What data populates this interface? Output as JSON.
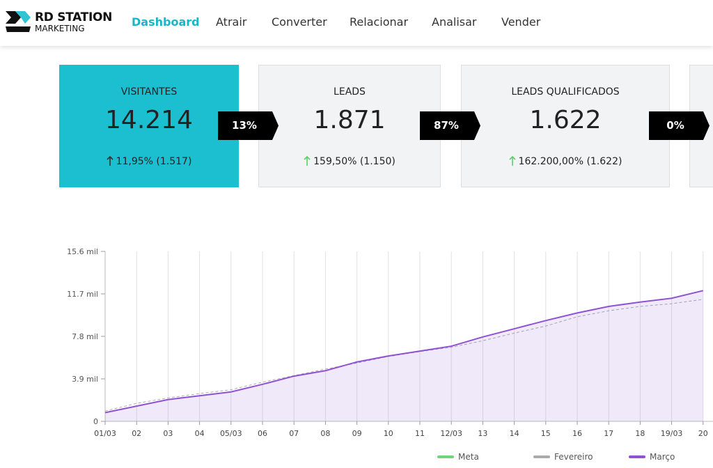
{
  "header": {
    "logo": {
      "line1": "RD STATION",
      "line2": "MARKETING"
    },
    "nav": [
      "Dashboard",
      "Atrair",
      "Converter",
      "Relacionar",
      "Analisar",
      "Vender"
    ]
  },
  "cards": [
    {
      "title": "VISITANTES",
      "value": "14.214",
      "change": "11,95% (1.517)"
    },
    {
      "title": "LEADS",
      "value": "1.871",
      "change": "159,50% (1.150)"
    },
    {
      "title": "LEADS QUALIFICADOS",
      "value": "1.622",
      "change": "162.200,00% (1.622)"
    }
  ],
  "conversions": [
    "13%",
    "87%",
    "0%"
  ],
  "chart_data": {
    "type": "line",
    "categories": [
      "01/03",
      "02",
      "03",
      "04",
      "05/03",
      "06",
      "07",
      "08",
      "09",
      "10",
      "11",
      "12/03",
      "13",
      "14",
      "15",
      "16",
      "17",
      "18",
      "19/03",
      "20"
    ],
    "series": [
      {
        "name": "Meta",
        "color": "#6fd47a",
        "values": [
          null,
          null,
          null,
          null,
          null,
          null,
          null,
          null,
          null,
          null,
          null,
          null,
          null,
          null,
          null,
          null,
          null,
          null,
          null,
          null
        ]
      },
      {
        "name": "Fevereiro",
        "color": "#aaaaaa",
        "values": [
          950,
          1650,
          2150,
          2550,
          2900,
          3600,
          4200,
          4800,
          5350,
          5950,
          6400,
          6800,
          7400,
          8100,
          8750,
          9600,
          10150,
          10550,
          10800,
          11200
        ]
      },
      {
        "name": "Março",
        "color": "#8e52d3",
        "values": [
          800,
          1400,
          2000,
          2350,
          2700,
          3400,
          4150,
          4650,
          5450,
          6000,
          6450,
          6900,
          7750,
          8500,
          9250,
          9950,
          10550,
          10950,
          11300,
          12000
        ]
      }
    ],
    "ylim": [
      0,
      15600
    ],
    "yticks": [
      0,
      {
        "value": 3900,
        "label": "3.9 mil"
      },
      {
        "value": 7800,
        "label": "7.8 mil"
      },
      {
        "value": 11700,
        "label": "11.7 mil"
      },
      {
        "value": 15600,
        "label": "15.6 mil"
      }
    ],
    "grid": true,
    "legend": "bottom"
  }
}
